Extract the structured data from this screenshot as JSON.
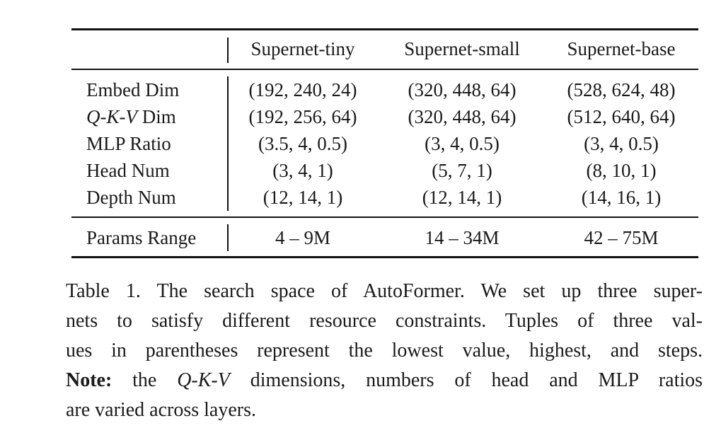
{
  "table": {
    "headers": [
      "",
      "Supernet-tiny",
      "Supernet-small",
      "Supernet-base"
    ],
    "rows": [
      {
        "label_main": "Embed Dim",
        "values": [
          "(192, 240, 24)",
          "(320, 448, 64)",
          "(528, 624, 48)"
        ]
      },
      {
        "label_main": "Dim",
        "label_italic": "Q-K-V",
        "values": [
          "(192, 256, 64)",
          "(320, 448, 64)",
          "(512, 640, 64)"
        ]
      },
      {
        "label_main": "MLP Ratio",
        "values": [
          "(3.5, 4, 0.5)",
          "(3, 4, 0.5)",
          "(3, 4, 0.5)"
        ]
      },
      {
        "label_main": "Head Num",
        "values": [
          "(3, 4, 1)",
          "(5, 7, 1)",
          "(8, 10, 1)"
        ]
      },
      {
        "label_main": "Depth Num",
        "values": [
          "(12, 14, 1)",
          "(12, 14, 1)",
          "(14, 16, 1)"
        ]
      }
    ],
    "params_row": {
      "label": "Params Range",
      "values": [
        "4 – 9M",
        "14 – 34M",
        "42 – 75M"
      ]
    }
  },
  "caption": {
    "line1": "Table 1. The search space of AutoFormer. We set up three super-",
    "line2": "nets to satisfy different resource constraints. Tuples of three val-",
    "line3": "ues in parentheses represent the lowest value, highest, and steps.",
    "note_label": "Note:",
    "line4_a": "the",
    "line4_italic": "Q-K-V",
    "line4_b": "dimensions, numbers of head and MLP ratios",
    "line5": "are varied across layers."
  }
}
